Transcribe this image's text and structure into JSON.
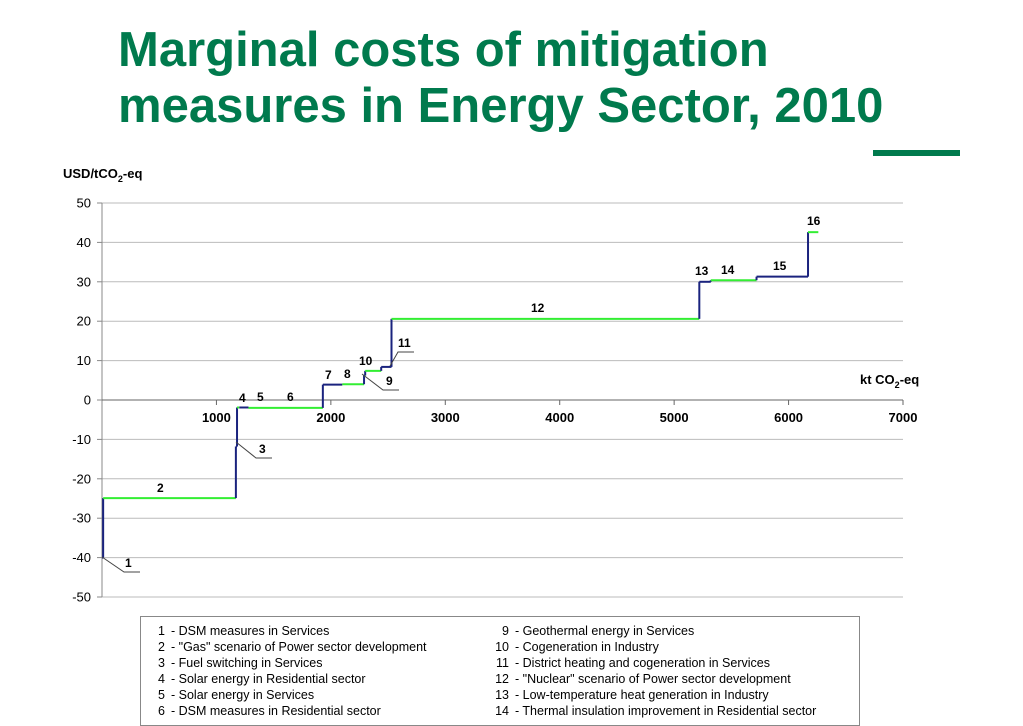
{
  "title_line1": "Marginal costs of mitigation",
  "title_line2": "measures in Energy Sector, 2010",
  "colors": {
    "title": "#007A4D",
    "step_green": "#33EE33",
    "step_navy": "#1A237E",
    "axis": "#888888",
    "grid": "#BBBBBB"
  },
  "chart_data": {
    "type": "line",
    "ylabel_main": "USD/tCO",
    "ylabel_sub": "2",
    "ylabel_suffix": "-eq",
    "xlabel_main": "kt CO",
    "xlabel_sub": "2",
    "xlabel_suffix": "-eq",
    "ylim": [
      -50,
      50
    ],
    "xlim": [
      0,
      7000
    ],
    "y_ticks": [
      50,
      40,
      30,
      20,
      10,
      0,
      -10,
      -20,
      -30,
      -40,
      -50
    ],
    "x_ticks": [
      1000,
      2000,
      3000,
      4000,
      5000,
      6000,
      7000
    ],
    "grid": true,
    "series": [
      {
        "steps": [
          {
            "label": "1",
            "x_start": 0,
            "x_end": 10,
            "y": -40
          },
          {
            "label": "2",
            "x_start": 10,
            "x_end": 1170,
            "y": -24.9
          },
          {
            "label": "3",
            "x_start": 1170,
            "x_end": 1180,
            "y": -11.8
          },
          {
            "label": "4",
            "x_start": 1180,
            "x_end": 1200,
            "y": -1.9
          },
          {
            "label": "5",
            "x_start": 1200,
            "x_end": 1280,
            "y": -1.9
          },
          {
            "label": "6",
            "x_start": 1280,
            "x_end": 1930,
            "y": -2
          },
          {
            "label": "7",
            "x_start": 1930,
            "x_end": 2100,
            "y": 3.9
          },
          {
            "label": "8",
            "x_start": 2100,
            "x_end": 2290,
            "y": 4
          },
          {
            "label": "9",
            "x_start": 2290,
            "x_end": 2300,
            "y": 6.2
          },
          {
            "label": "10",
            "x_start": 2300,
            "x_end": 2440,
            "y": 7.4
          },
          {
            "label": "11",
            "x_start": 2440,
            "x_end": 2530,
            "y": 8.4
          },
          {
            "label": "12",
            "x_start": 2530,
            "x_end": 5220,
            "y": 20.6
          },
          {
            "label": "13",
            "x_start": 5220,
            "x_end": 5320,
            "y": 30
          },
          {
            "label": "14",
            "x_start": 5320,
            "x_end": 5720,
            "y": 30.4
          },
          {
            "label": "15",
            "x_start": 5720,
            "x_end": 6170,
            "y": 31.3
          },
          {
            "label": "16",
            "x_start": 6170,
            "x_end": 6260,
            "y": 42.6
          }
        ]
      }
    ]
  },
  "legend": {
    "left": [
      {
        "num": "1",
        "text": "- DSM measures in Services"
      },
      {
        "num": "2",
        "text": "- \"Gas\" scenario of Power sector development"
      },
      {
        "num": "3",
        "text": "- Fuel switching in Services"
      },
      {
        "num": "4",
        "text": "- Solar energy in Residential sector"
      },
      {
        "num": "5",
        "text": "- Solar energy in Services"
      },
      {
        "num": "6",
        "text": "- DSM measures in Residential sector"
      }
    ],
    "right": [
      {
        "num": "9",
        "text": "- Geothermal energy in Services"
      },
      {
        "num": "10",
        "text": "- Cogeneration in Industry"
      },
      {
        "num": "11",
        "text": "- District heating and cogeneration in Services"
      },
      {
        "num": "12",
        "text": "- \"Nuclear\" scenario of Power sector development"
      },
      {
        "num": "13",
        "text": "- Low-temperature heat generation in Industry"
      },
      {
        "num": "14",
        "text": "- Thermal insulation improvement in Residential sector"
      }
    ]
  }
}
